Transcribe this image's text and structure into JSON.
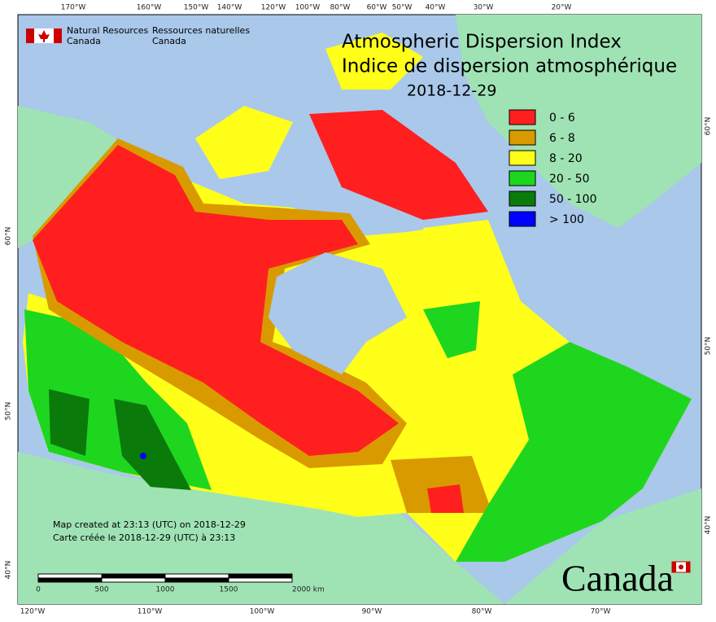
{
  "header": {
    "agency_en_1": "Natural Resources",
    "agency_en_2": "Canada",
    "agency_fr_1": "Ressources naturelles",
    "agency_fr_2": "Canada"
  },
  "title": {
    "line1": "Atmospheric Dispersion Index",
    "line2": "Indice de dispersion atmosphérique",
    "date": "2018-12-29"
  },
  "legend": [
    {
      "label": "0 - 6",
      "color": "#ff1f1f"
    },
    {
      "label": "6 - 8",
      "color": "#d99a00"
    },
    {
      "label": "8 - 20",
      "color": "#ffff1a"
    },
    {
      "label": "20 - 50",
      "color": "#1fd61f"
    },
    {
      "label": "50 - 100",
      "color": "#0a7a0a"
    },
    {
      "label": "> 100",
      "color": "#0000ff"
    }
  ],
  "top_longitudes": [
    "170°W",
    "160°W",
    "150°W",
    "140°W",
    "120°W",
    "100°W",
    "80°W",
    "60°W",
    "50°W",
    "40°W",
    "30°W",
    "20°W"
  ],
  "bottom_longitudes": [
    "120°W",
    "110°W",
    "100°W",
    "90°W",
    "80°W",
    "70°W"
  ],
  "left_latitudes": [
    "60°N",
    "50°N",
    "40°N"
  ],
  "right_latitudes": [
    "60°N",
    "50°N",
    "40°N"
  ],
  "notes": {
    "en": "Map created at 23:13 (UTC) on 2018-12-29",
    "fr": "Carte créée le 2018-12-29 (UTC) à 23:13"
  },
  "scale_bar": [
    "0",
    "500",
    "1000",
    "1500",
    "2000 km"
  ],
  "wordmark": "Canada"
}
